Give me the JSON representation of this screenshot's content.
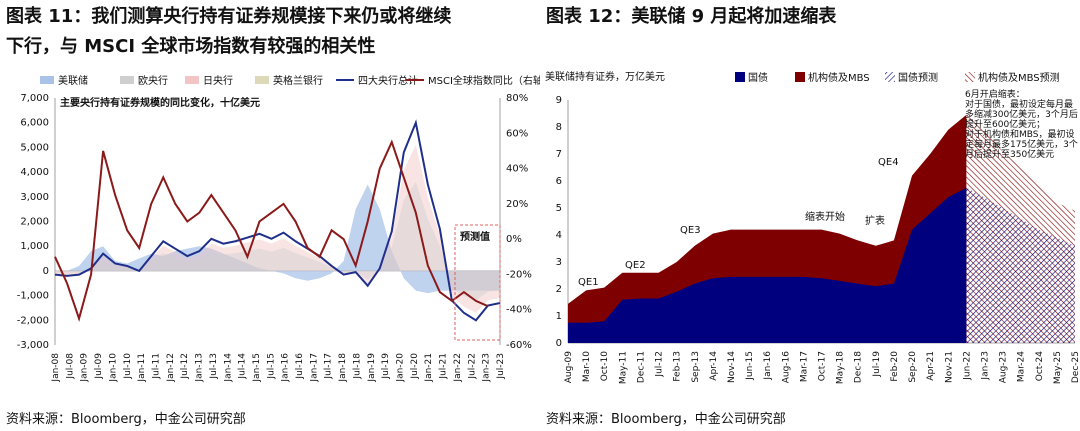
{
  "left": {
    "title_line1": "图表 11：我们测算央行持有证券规模接下来仍或将继续",
    "title_line2": "下行，与 MSCI 全球市场指数有较强的相关性",
    "source": "资料来源：Bloomberg，中金公司研究部"
  },
  "right": {
    "title": "图表 12：美联储 9 月起将加速缩表",
    "source": "资料来源：Bloomberg，中金公司研究部"
  },
  "chart_data": [
    {
      "type": "area",
      "subtitle": "主要央行持有证券规模的同比变化，十亿美元",
      "legend": [
        "美联储",
        "欧央行",
        "日央行",
        "英格兰银行",
        "四大央行总计",
        "MSCI全球指数同比（右轴）"
      ],
      "colors": {
        "fed": "#a9c3e8",
        "ecb": "#cfcfcf",
        "boj": "#f2c4c4",
        "boe": "#dcd8b8",
        "total": "#1f2f8a",
        "msci": "#8b1a1a",
        "forecast": "#e06060"
      },
      "y_left_ticks": [
        "-3,000",
        "-2,000",
        "-1,000",
        "0",
        "1,000",
        "2,000",
        "3,000",
        "4,000",
        "5,000",
        "6,000",
        "7,000"
      ],
      "ylim_left": [
        -3000,
        7000
      ],
      "y_right_ticks": [
        "-60%",
        "-40%",
        "-20%",
        "0%",
        "20%",
        "40%",
        "60%",
        "80%"
      ],
      "ylim_right": [
        -60,
        80
      ],
      "x_ticks": [
        "Jan-08",
        "Jul-08",
        "Jan-09",
        "Jul-09",
        "Jan-10",
        "Jul-10",
        "Jan-11",
        "Jul-11",
        "Jan-12",
        "Jul-12",
        "Jan-13",
        "Jul-13",
        "Jan-14",
        "Jul-14",
        "Jan-15",
        "Jul-15",
        "Jan-16",
        "Jul-16",
        "Jan-17",
        "Jul-17",
        "Jan-18",
        "Jul-18",
        "Jan-19",
        "Jul-19",
        "Jan-20",
        "Jul-20",
        "Jan-21",
        "Jul-21",
        "Jan-22",
        "Jul-22",
        "Jan-23",
        "Jul-23"
      ],
      "annotation": "预测值",
      "total_series": [
        -150,
        -200,
        -150,
        100,
        700,
        300,
        200,
        0,
        600,
        1200,
        900,
        600,
        800,
        1300,
        1100,
        1200,
        1350,
        1500,
        1300,
        1550,
        1200,
        900,
        600,
        200,
        -150,
        -50,
        -600,
        100,
        1600,
        4800,
        6000,
        3500,
        1700,
        -1200,
        -1700,
        -2000,
        -1400,
        -1300
      ],
      "msci_series": [
        -10,
        -25,
        -45,
        -20,
        50,
        25,
        5,
        -5,
        20,
        35,
        20,
        10,
        15,
        25,
        15,
        5,
        -10,
        10,
        15,
        20,
        10,
        -5,
        -10,
        5,
        0,
        -15,
        10,
        40,
        55,
        35,
        15,
        -15,
        -30,
        -35,
        -30,
        -35,
        -38
      ],
      "fed_series": [
        0,
        0,
        200,
        800,
        1000,
        400,
        300,
        500,
        700,
        600,
        800,
        900,
        1000,
        900,
        700,
        500,
        300,
        100,
        0,
        -100,
        -300,
        -400,
        -300,
        -100,
        400,
        2500,
        3500,
        2500,
        800,
        -300,
        -800,
        -900,
        -800,
        -800,
        -800,
        -800,
        -800,
        -800
      ]
    },
    {
      "type": "area",
      "subtitle": "美联储持有证券，万亿美元",
      "legend": [
        "国债",
        "机构债及MBS",
        "国债预测",
        "机构债及MBS预测"
      ],
      "colors": {
        "treasury": "#00007f",
        "mbs": "#7f0000"
      },
      "ylim": [
        0,
        9
      ],
      "y_ticks": [
        "0",
        "1",
        "2",
        "3",
        "4",
        "5",
        "6",
        "7",
        "8",
        "9"
      ],
      "x_ticks": [
        "Aug-09",
        "Mar-10",
        "Oct-10",
        "May-11",
        "Dec-11",
        "Jul-12",
        "Feb-13",
        "Sep-13",
        "Apr-14",
        "Nov-14",
        "Jun-15",
        "Jan-16",
        "Aug-16",
        "Mar-17",
        "Oct-17",
        "May-18",
        "Dec-18",
        "Jul-19",
        "Feb-20",
        "Sep-20",
        "Apr-21",
        "Nov-21",
        "Jun-22",
        "Jan-23",
        "Aug-23",
        "Mar-24",
        "Oct-24",
        "May-25",
        "Dec-25"
      ],
      "treasury": [
        0.75,
        0.75,
        0.8,
        1.6,
        1.65,
        1.65,
        1.9,
        2.2,
        2.4,
        2.45,
        2.45,
        2.45,
        2.45,
        2.45,
        2.4,
        2.3,
        2.2,
        2.1,
        2.2,
        4.2,
        4.8,
        5.4,
        5.75,
        5.4,
        5.0,
        4.6,
        4.2,
        3.9,
        3.6
      ],
      "total": [
        1.45,
        1.95,
        2.05,
        2.6,
        2.6,
        2.6,
        3.0,
        3.6,
        4.05,
        4.2,
        4.2,
        4.2,
        4.2,
        4.2,
        4.2,
        4.05,
        3.8,
        3.6,
        3.8,
        6.2,
        7.0,
        7.9,
        8.45,
        7.9,
        7.1,
        6.5,
        5.9,
        5.2,
        4.9
      ],
      "forecast_start_index": 22,
      "annotations": [
        "QE1",
        "QE2",
        "QE3",
        "缩表开始",
        "扩表",
        "QE4"
      ],
      "note": [
        "6月开启缩表：",
        "对于国债，最初设定每月最",
        "多缩减300亿美元，3个月后",
        "提升至600亿美元；",
        "对于机构债和MBS，最初设",
        "定每月最多175亿美元，3个",
        "月后提升至350亿美元"
      ]
    }
  ]
}
